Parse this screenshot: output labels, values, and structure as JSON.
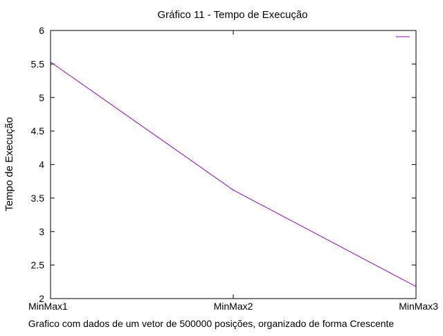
{
  "chart_data": {
    "type": "line",
    "title": "Gráfico 11 - Tempo de Execução",
    "xlabel": "Grafico com dados de um vetor de 500000 posições, organizado de forma Crescente",
    "ylabel": "Tempo de Execução",
    "categories": [
      "MinMax1",
      "MinMax2",
      "MinMax3"
    ],
    "series": [
      {
        "values": [
          5.53,
          3.62,
          2.18
        ],
        "color": "#9400d3"
      }
    ],
    "ylim": [
      2,
      6
    ],
    "yticks": [
      2,
      2.5,
      3,
      3.5,
      4,
      4.5,
      5,
      5.5,
      6
    ],
    "ytick_labels": [
      "2",
      "2.5",
      "3",
      "3.5",
      "4",
      "4.5",
      "5",
      "5.5",
      "6"
    ],
    "grid": false,
    "legend": "top-right"
  }
}
